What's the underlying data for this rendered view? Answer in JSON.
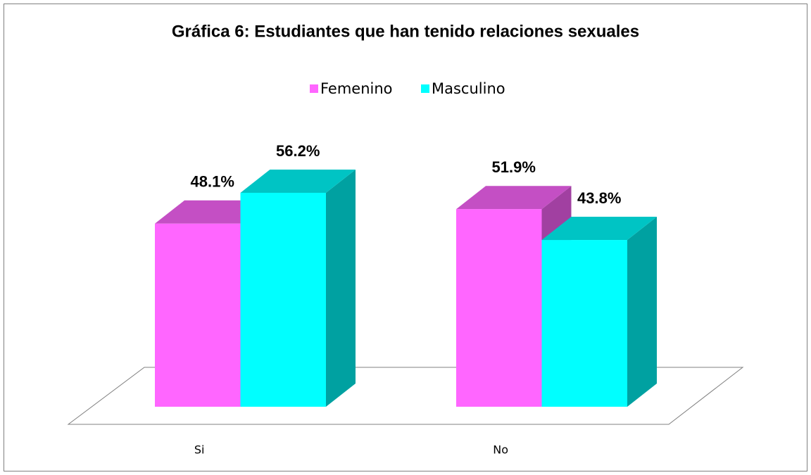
{
  "chart_data": {
    "type": "bar3d",
    "title": "Gráfica 6: Estudiantes que han tenido relaciones sexuales",
    "categories": [
      "Si",
      "No"
    ],
    "series": [
      {
        "name": "Femenino",
        "color": "#ff66ff",
        "values": [
          48.1,
          51.9
        ],
        "value_labels": [
          "48.1%",
          "51.9%"
        ]
      },
      {
        "name": "Masculino",
        "color": "#00ffff",
        "values": [
          56.2,
          43.8
        ],
        "value_labels": [
          "56.2%",
          "43.8%"
        ]
      }
    ],
    "legend": "top"
  }
}
